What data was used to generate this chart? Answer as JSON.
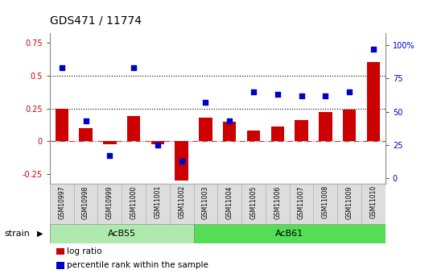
{
  "title": "GDS471 / 11774",
  "samples": [
    "GSM10997",
    "GSM10998",
    "GSM10999",
    "GSM11000",
    "GSM11001",
    "GSM11002",
    "GSM11003",
    "GSM11004",
    "GSM11005",
    "GSM11006",
    "GSM11007",
    "GSM11008",
    "GSM11009",
    "GSM11010"
  ],
  "log_ratio": [
    0.25,
    0.1,
    -0.02,
    0.19,
    -0.02,
    -0.3,
    0.18,
    0.15,
    0.08,
    0.11,
    0.16,
    0.22,
    0.24,
    0.6
  ],
  "percentile": [
    83,
    43,
    17,
    83,
    25,
    13,
    57,
    43,
    65,
    63,
    62,
    62,
    65,
    97
  ],
  "strain_groups": [
    {
      "label": "AcB55",
      "start": 0,
      "end": 5,
      "color": "#AEEAAE"
    },
    {
      "label": "AcB61",
      "start": 6,
      "end": 13,
      "color": "#55DD55"
    }
  ],
  "ylim_left": [
    -0.32,
    0.82
  ],
  "ylim_right": [
    -4,
    109
  ],
  "yticks_left": [
    -0.25,
    0.0,
    0.25,
    0.5,
    0.75
  ],
  "yticks_right": [
    0,
    25,
    50,
    75,
    100
  ],
  "bar_color": "#CC0000",
  "dot_color": "#0000CC",
  "strain_label": "strain",
  "legend_log_ratio": "log ratio",
  "legend_percentile": "percentile rank within the sample",
  "title_fontsize": 10,
  "tick_fontsize": 7,
  "label_fontsize": 8
}
